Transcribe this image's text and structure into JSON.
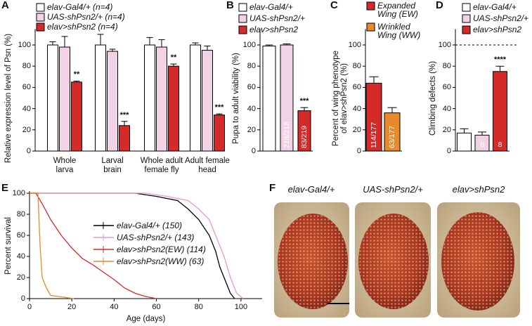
{
  "chart_data": [
    {
      "type": "bar",
      "panel": "A",
      "ylabel": "Relative expression level of Psn (%)",
      "categories": [
        "Whole\nlarva",
        "Larval\nbrain",
        "Whole adult\nfemale fly",
        "Adult female\nhead"
      ],
      "ylim": [
        0,
        115
      ],
      "yticks": [
        0,
        20,
        40,
        60,
        80,
        100
      ],
      "series": [
        {
          "name": "elav-Gal4/+ (n=4)",
          "color": "#ffffff",
          "values": [
            100,
            100,
            100,
            100
          ],
          "errors": [
            3,
            10,
            7,
            2
          ]
        },
        {
          "name": "UAS-shPsn2/+ (n=4)",
          "color": "#f2d3e5",
          "values": [
            98,
            94,
            98,
            95
          ],
          "errors": [
            10,
            2,
            7,
            4
          ]
        },
        {
          "name": "elav>shPsn2 (n=4)",
          "color": "#d42a2a",
          "values": [
            65,
            24,
            80,
            34
          ],
          "errors": [
            1,
            4,
            2,
            1
          ],
          "significance": [
            "**",
            "***",
            "**",
            "***"
          ]
        }
      ]
    },
    {
      "type": "bar",
      "panel": "B",
      "ylabel": "Pupa to adult viability (%)",
      "ylim": [
        0,
        115
      ],
      "yticks": [
        0,
        20,
        40,
        60,
        80,
        100
      ],
      "series": [
        {
          "name": "elav-Gal4/+",
          "color": "#ffffff",
          "values": [
            99
          ],
          "errors": [
            1
          ],
          "bar_labels": [
            "210/212"
          ]
        },
        {
          "name": "UAS-shPsn2/+",
          "color": "#f2d3e5",
          "values": [
            100
          ],
          "errors": [
            1
          ],
          "bar_labels": [
            "218/218"
          ]
        },
        {
          "name": "elav>shPsn2",
          "color": "#d42a2a",
          "values": [
            38
          ],
          "errors": [
            3
          ],
          "bar_labels": [
            "83/219"
          ],
          "significance": [
            "***"
          ]
        }
      ]
    },
    {
      "type": "bar",
      "panel": "C",
      "ylabel": "Percent of wing phenotype\nof elav>shPsn2 (%)",
      "ylim": [
        0,
        115
      ],
      "yticks": [
        0,
        20,
        40,
        60,
        80,
        100
      ],
      "series": [
        {
          "name": "Expanded\nWing (EW)",
          "color": "#d42a2a",
          "values": [
            64
          ],
          "errors": [
            6
          ],
          "bar_labels": [
            "114/177"
          ]
        },
        {
          "name": "Wrinkled\nWing (WW)",
          "color": "#e8892b",
          "values": [
            36
          ],
          "errors": [
            5
          ],
          "bar_labels": [
            "63/177"
          ]
        }
      ]
    },
    {
      "type": "bar",
      "panel": "D",
      "ylabel": "Climbing defects (%)",
      "reference_line": 100,
      "ylim": [
        0,
        115
      ],
      "yticks": [
        0,
        20,
        40,
        60,
        80,
        100
      ],
      "series": [
        {
          "name": "elav-Gal4/+",
          "color": "#ffffff",
          "values": [
            17
          ],
          "errors": [
            4
          ],
          "bar_labels": [
            "8"
          ]
        },
        {
          "name": "UAS-shPsn2/+",
          "color": "#f2d3e5",
          "values": [
            15
          ],
          "errors": [
            3
          ],
          "bar_labels": [
            "8"
          ]
        },
        {
          "name": "elav>shPsn2",
          "color": "#d42a2a",
          "values": [
            75
          ],
          "errors": [
            5
          ],
          "bar_labels": [
            "8"
          ],
          "significance": [
            "****"
          ]
        }
      ]
    },
    {
      "type": "line",
      "panel": "E",
      "xlabel": "Age (days)",
      "ylabel": "Percent survival",
      "xlim": [
        0,
        110
      ],
      "xticks": [
        0,
        20,
        40,
        60,
        80,
        100
      ],
      "ylim": [
        0,
        100
      ],
      "yticks": [
        0,
        20,
        40,
        60,
        80,
        100
      ],
      "series": [
        {
          "name": "elav-Gal4/+ (150)",
          "color": "#000000",
          "x": [
            0,
            50,
            60,
            70,
            75,
            80,
            85,
            88,
            90,
            93,
            95,
            97
          ],
          "values": [
            100,
            100,
            97,
            93,
            85,
            75,
            60,
            45,
            30,
            15,
            5,
            0
          ]
        },
        {
          "name": "UAS-shPsn2/+ (143)",
          "color": "#e59ad0",
          "x": [
            0,
            55,
            65,
            75,
            80,
            85,
            88,
            92,
            95,
            98,
            101
          ],
          "values": [
            100,
            100,
            97,
            93,
            85,
            75,
            60,
            40,
            20,
            5,
            0
          ]
        },
        {
          "name": "elav>shPsn2(EW) (114)",
          "color": "#d42a2a",
          "x": [
            0,
            3,
            6,
            10,
            15,
            20,
            25,
            30,
            35,
            40,
            45,
            50,
            55,
            60
          ],
          "values": [
            100,
            100,
            90,
            75,
            60,
            48,
            38,
            32,
            25,
            18,
            10,
            5,
            2,
            0
          ]
        },
        {
          "name": "elav>shPsn2(WW) (63)",
          "color": "#e8892b",
          "x": [
            0,
            4,
            5,
            6,
            8,
            10,
            21
          ],
          "values": [
            100,
            100,
            50,
            20,
            10,
            3,
            0
          ]
        }
      ]
    }
  ],
  "images": {
    "panel": "F",
    "labels": [
      "elav-Gal4/+",
      "UAS-shPsn2/+",
      "elav>shPsn2"
    ]
  }
}
